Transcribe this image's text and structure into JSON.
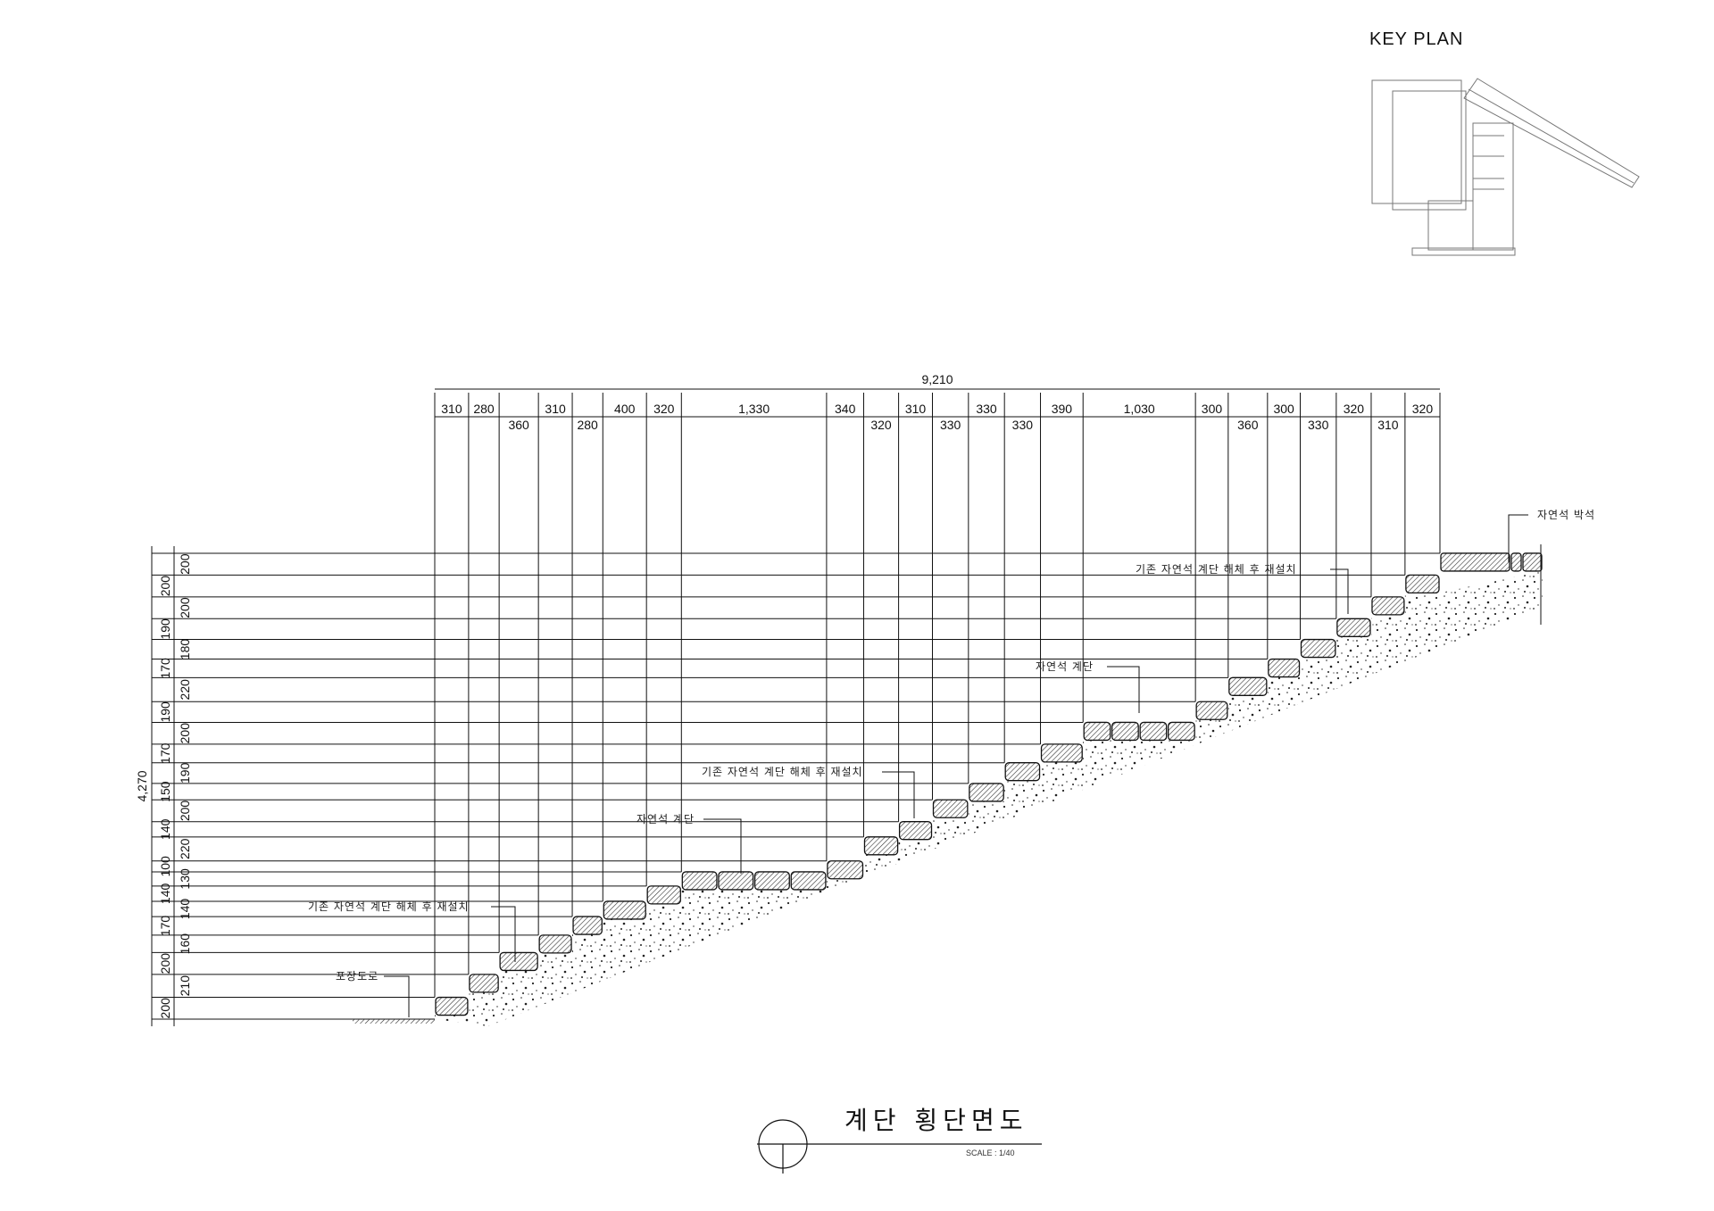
{
  "key_plan": {
    "title": "KEY PLAN"
  },
  "drawing": {
    "title": "계단 횡단면도",
    "scale": "SCALE : 1/40"
  },
  "dimensions": {
    "total_width_label": "9,210",
    "total_height_label": "4,270",
    "widths": [
      310,
      280,
      360,
      310,
      280,
      400,
      320,
      1330,
      340,
      320,
      310,
      330,
      330,
      330,
      390,
      1030,
      300,
      360,
      300,
      330,
      320,
      310,
      320
    ],
    "width_labels": [
      "310",
      "280",
      "360",
      "310",
      "280",
      "400",
      "320",
      "1,330",
      "340",
      "320",
      "310",
      "330",
      "330",
      "330",
      "390",
      "1,030",
      "300",
      "360",
      "300",
      "330",
      "320",
      "310",
      "320"
    ],
    "heights": [
      200,
      210,
      200,
      160,
      170,
      140,
      140,
      130,
      100,
      220,
      140,
      200,
      150,
      190,
      170,
      200,
      190,
      220,
      170,
      180,
      190,
      200,
      200,
      200
    ],
    "height_labels": [
      "200",
      "210",
      "200",
      "160",
      "170",
      "140",
      "140",
      "130",
      "100",
      "220",
      "140",
      "200",
      "150",
      "190",
      "170",
      "200",
      "190",
      "220",
      "170",
      "180",
      "190",
      "200",
      "200",
      "200"
    ]
  },
  "annotations": [
    {
      "text": "자연석 박석"
    },
    {
      "text": "기존 자연석 계단 해체 후 재설치"
    },
    {
      "text": "자연석 계단"
    },
    {
      "text": "기존 자연석 계단 해체 후 재설치"
    },
    {
      "text": "자연석 계단"
    },
    {
      "text": "기존 자연석 계단 해체 후 재설치"
    },
    {
      "text": "포장도로"
    }
  ],
  "colors": {
    "line": "#111111",
    "hatch": "#333333"
  }
}
